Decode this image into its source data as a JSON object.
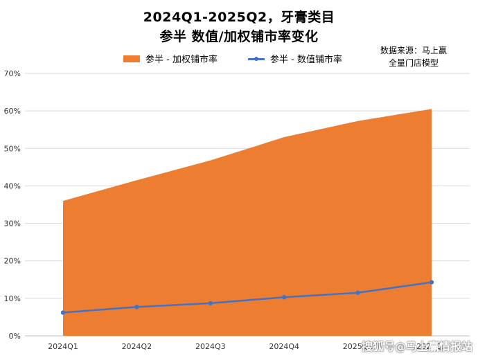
{
  "chart_data": {
    "type": "area+line",
    "title_line1": "2024Q1-2025Q2，牙膏类目",
    "title_line2": "参半 数值/加权铺市率变化",
    "source_line1": "数据来源：马上赢",
    "source_line2": "全量门店模型",
    "categories": [
      "2024Q1",
      "2024Q2",
      "2024Q3",
      "2024Q4",
      "2025Q1",
      "2025Q2"
    ],
    "series": [
      {
        "name": "参半 - 加权铺市率",
        "kind": "area",
        "color": "#ED7D31",
        "values": [
          0.36,
          0.415,
          0.468,
          0.53,
          0.573,
          0.605
        ]
      },
      {
        "name": "参半 - 数值铺市率",
        "kind": "line",
        "color": "#4472C4",
        "values": [
          0.062,
          0.077,
          0.087,
          0.103,
          0.115,
          0.143
        ]
      }
    ],
    "ylim": [
      0,
      0.7
    ],
    "yticks": [
      "0%",
      "10%",
      "20%",
      "30%",
      "40%",
      "50%",
      "60%",
      "70%"
    ],
    "grid": true,
    "legend_position": "top"
  },
  "watermark": "搜狐号@马上赢情报站"
}
